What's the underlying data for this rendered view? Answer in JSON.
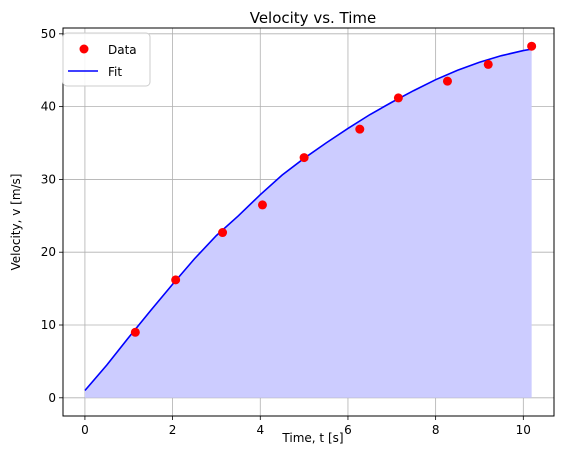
{
  "chart_data": {
    "type": "scatter",
    "title": "Velocity vs. Time",
    "xlabel": "Time, t [s]",
    "ylabel": "Velocity, v [m/s]",
    "xlim": [
      -0.5,
      10.7
    ],
    "ylim": [
      -2.5,
      50.8
    ],
    "x_ticks": [
      0,
      2,
      4,
      6,
      8,
      10
    ],
    "y_ticks": [
      0,
      10,
      20,
      30,
      40,
      50
    ],
    "grid": true,
    "legend_position": "upper-left",
    "series": [
      {
        "name": "Data",
        "kind": "scatter",
        "color": "#ff0000",
        "x": [
          1.15,
          2.07,
          3.14,
          4.05,
          5.0,
          6.27,
          7.15,
          8.27,
          9.2,
          10.19
        ],
        "y": [
          9.0,
          16.2,
          22.7,
          26.5,
          33.0,
          36.9,
          41.2,
          43.5,
          45.8,
          48.3
        ]
      },
      {
        "name": "Fit",
        "kind": "line",
        "color": "#0000ff",
        "fill_color": "#ccccff",
        "x": [
          0,
          0.5,
          1,
          1.5,
          2,
          2.5,
          3,
          3.5,
          4,
          4.5,
          5,
          5.5,
          6,
          6.5,
          7,
          7.5,
          8,
          8.5,
          9,
          9.5,
          10,
          10.19
        ],
        "y": [
          1.0,
          4.5,
          8.3,
          12.0,
          15.6,
          19.1,
          22.3,
          25.0,
          27.9,
          30.6,
          32.9,
          35.0,
          37.0,
          38.9,
          40.6,
          42.2,
          43.7,
          45.0,
          46.1,
          47.0,
          47.7,
          47.9
        ]
      }
    ]
  }
}
